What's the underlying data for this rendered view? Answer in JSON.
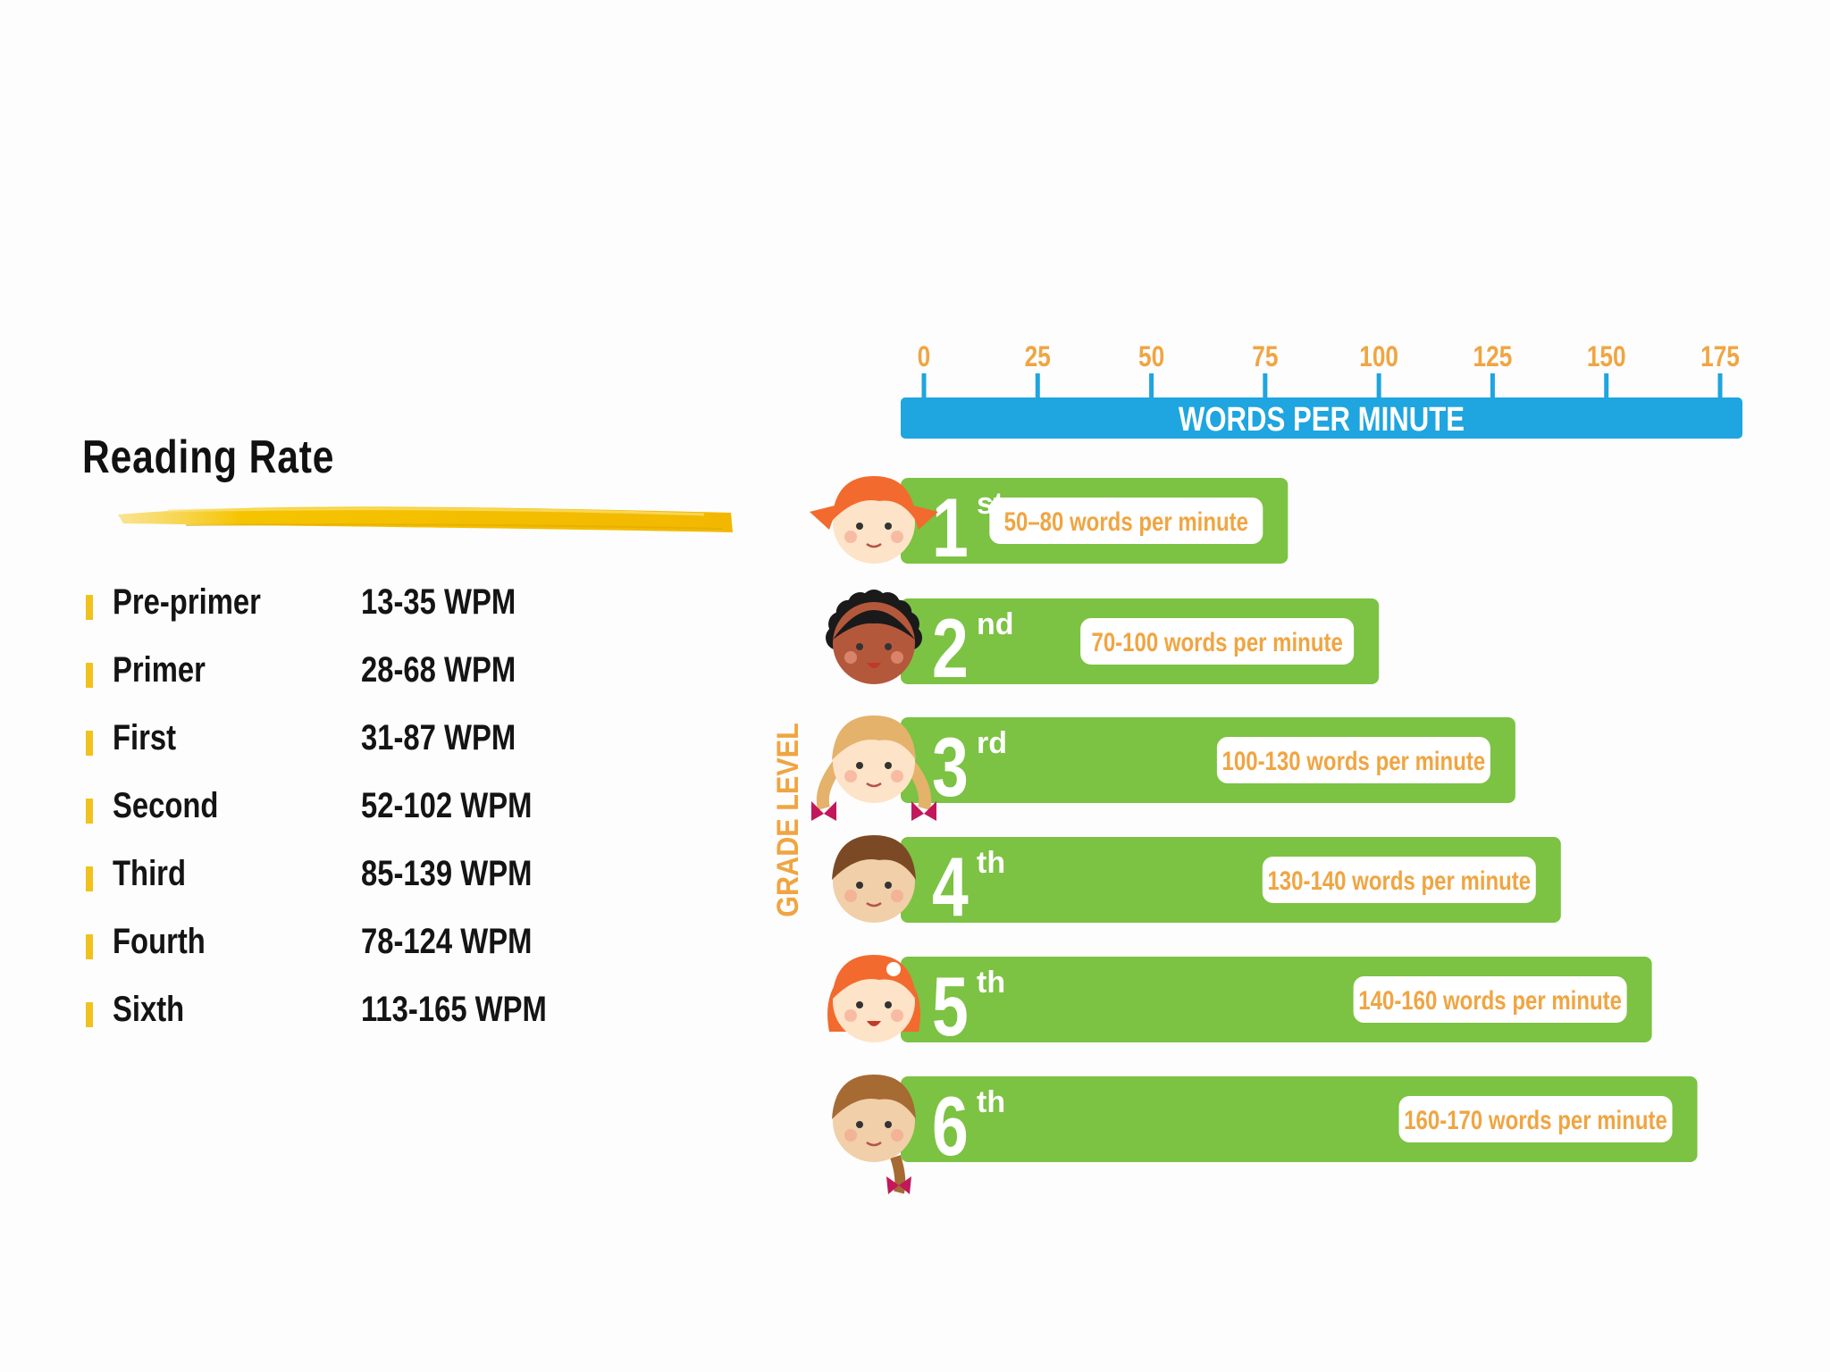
{
  "left_panel": {
    "title": "Reading Rate",
    "rates": [
      {
        "grade": "Pre-primer",
        "wpm": "13-35 WPM"
      },
      {
        "grade": "Primer",
        "wpm": "28-68 WPM"
      },
      {
        "grade": "First",
        "wpm": "31-87 WPM"
      },
      {
        "grade": "Second",
        "wpm": "52-102 WPM"
      },
      {
        "grade": "Third",
        "wpm": "85-139 WPM"
      },
      {
        "grade": "Fourth",
        "wpm": "78-124 WPM"
      },
      {
        "grade": "Sixth",
        "wpm": "113-165 WPM"
      }
    ]
  },
  "chart_data": {
    "type": "bar",
    "orientation": "horizontal",
    "xlabel": "WORDS PER MINUTE",
    "ylabel": "GRADE LEVEL",
    "xlim": [
      0,
      175
    ],
    "x_ticks": [
      "0",
      "25",
      "50",
      "75",
      "100",
      "125",
      "150",
      "175"
    ],
    "categories": [
      {
        "number": "1",
        "suffix": "st",
        "label": "50–80 words per minute",
        "value": 80
      },
      {
        "number": "2",
        "suffix": "nd",
        "label": "70-100 words per minute",
        "value": 100
      },
      {
        "number": "3",
        "suffix": "rd",
        "label": "100-130 words per minute",
        "value": 130
      },
      {
        "number": "4",
        "suffix": "th",
        "label": "130-140 words per minute",
        "value": 140
      },
      {
        "number": "5",
        "suffix": "th",
        "label": "140-160 words per minute",
        "value": 160
      },
      {
        "number": "6",
        "suffix": "th",
        "label": "160-170 words per minute",
        "value": 170
      }
    ],
    "colors": {
      "bar": "#7cc243",
      "axis": "#1fa5df",
      "tick_label": "#f0a542",
      "grade_label": "#f0a542",
      "pill_text": "#f0a542"
    }
  }
}
